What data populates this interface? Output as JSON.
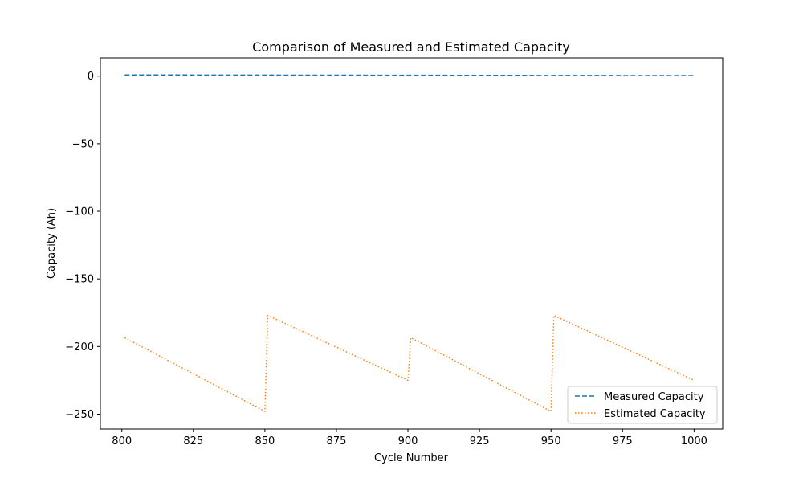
{
  "chart_data": {
    "type": "line",
    "title": "Comparison of Measured and Estimated Capacity",
    "xlabel": "Cycle Number",
    "ylabel": "Capacity (Ah)",
    "xlim": [
      792.5,
      1010
    ],
    "ylim": [
      -261,
      13.5
    ],
    "xticks": [
      800,
      825,
      850,
      875,
      900,
      925,
      950,
      975,
      1000
    ],
    "yticks": [
      0,
      -50,
      -100,
      -150,
      -200,
      -250
    ],
    "xtick_labels": [
      "800",
      "825",
      "850",
      "875",
      "900",
      "925",
      "950",
      "975",
      "1000"
    ],
    "ytick_labels": [
      "0",
      "−50",
      "−100",
      "−150",
      "−200",
      "−250"
    ],
    "grid": false,
    "legend_position": "lower-right",
    "series": [
      {
        "name": "Measured Capacity",
        "style": "dashed",
        "color": "#1f77b4",
        "points": [
          [
            801,
            0.9
          ],
          [
            1000,
            0.4
          ]
        ]
      },
      {
        "name": "Estimated Capacity",
        "style": "dotted",
        "color": "#ff7f0e",
        "points": [
          [
            801,
            -193.5
          ],
          [
            850,
            -248
          ],
          [
            851,
            -177
          ],
          [
            900,
            -225
          ],
          [
            901,
            -193.5
          ],
          [
            950,
            -248
          ],
          [
            951,
            -177
          ],
          [
            1000,
            -225
          ]
        ]
      }
    ]
  }
}
